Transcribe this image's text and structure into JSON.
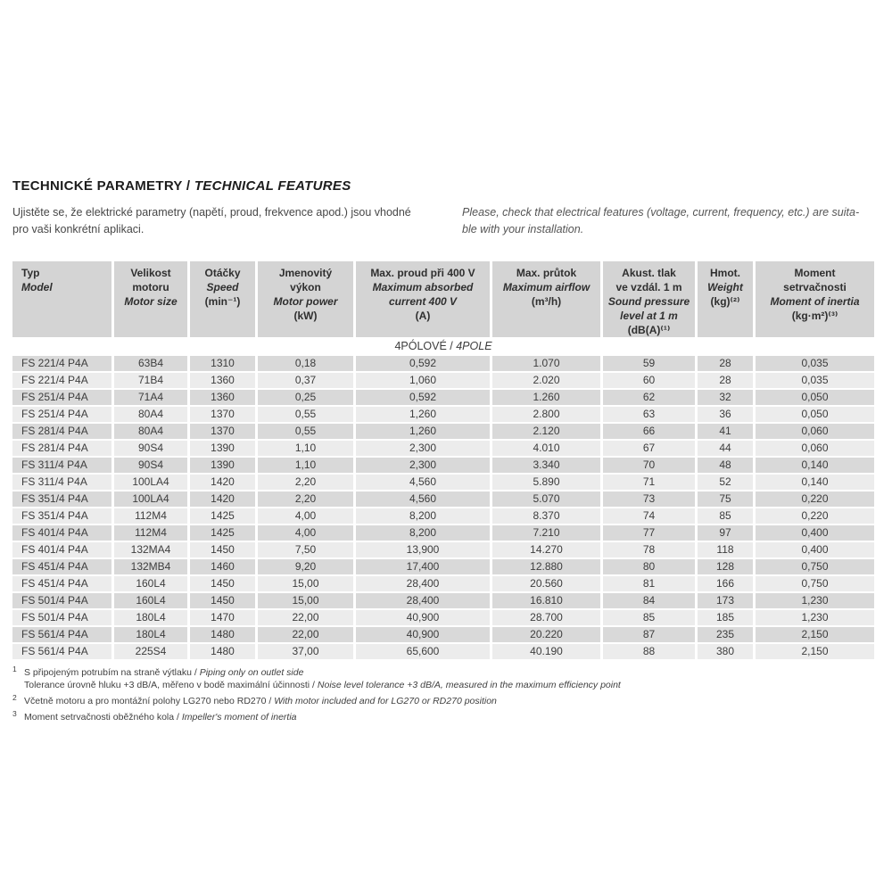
{
  "header": {
    "title_cs": "TECHNICKÉ PARAMETRY",
    "title_sep": " / ",
    "title_en": "TECHNICAL FEATURES"
  },
  "intro": {
    "cs": "Ujistěte se, že elektrické parametry (napětí, proud, frekvence apod.) jsou vhodné\npro vaši konkrétní aplikaci.",
    "en": "Please, check that electrical features (voltage, current, frequency, etc.) are suita-\nble with your installation."
  },
  "table": {
    "columns": [
      {
        "cs": "Typ",
        "en": "Model",
        "unit": ""
      },
      {
        "cs": "Velikost\nmotoru",
        "en": "Motor size",
        "unit": ""
      },
      {
        "cs": "Otáčky",
        "en": "Speed",
        "unit": "(min⁻¹)"
      },
      {
        "cs": "Jmenovitý\nvýkon",
        "en": "Motor power",
        "unit": "(kW)"
      },
      {
        "cs": "Max. proud při 400 V",
        "en": "Maximum absorbed\ncurrent 400 V",
        "unit": "(A)"
      },
      {
        "cs": "Max. průtok",
        "en": "Maximum airflow",
        "unit": "(m³/h)"
      },
      {
        "cs": "Akust. tlak\nve vzdál. 1 m",
        "en": "Sound pressure\nlevel at 1 m",
        "unit": "(dB(A)⁽¹⁾"
      },
      {
        "cs": "Hmot.",
        "en": "Weight",
        "unit": "(kg)⁽²⁾"
      },
      {
        "cs": "Moment\nsetrvačnosti",
        "en": "Moment of inertia",
        "unit": "(kg·m²)⁽³⁾"
      }
    ],
    "section_label_cs": "4PÓLOVÉ",
    "section_label_sep": " / ",
    "section_label_en": "4POLE",
    "rows": [
      [
        "FS 221/4 P4A",
        "63B4",
        "1310",
        "0,18",
        "0,592",
        "1.070",
        "59",
        "28",
        "0,035"
      ],
      [
        "FS 221/4 P4A",
        "71B4",
        "1360",
        "0,37",
        "1,060",
        "2.020",
        "60",
        "28",
        "0,035"
      ],
      [
        "FS 251/4 P4A",
        "71A4",
        "1360",
        "0,25",
        "0,592",
        "1.260",
        "62",
        "32",
        "0,050"
      ],
      [
        "FS 251/4 P4A",
        "80A4",
        "1370",
        "0,55",
        "1,260",
        "2.800",
        "63",
        "36",
        "0,050"
      ],
      [
        "FS 281/4 P4A",
        "80A4",
        "1370",
        "0,55",
        "1,260",
        "2.120",
        "66",
        "41",
        "0,060"
      ],
      [
        "FS 281/4 P4A",
        "90S4",
        "1390",
        "1,10",
        "2,300",
        "4.010",
        "67",
        "44",
        "0,060"
      ],
      [
        "FS 311/4 P4A",
        "90S4",
        "1390",
        "1,10",
        "2,300",
        "3.340",
        "70",
        "48",
        "0,140"
      ],
      [
        "FS 311/4 P4A",
        "100LA4",
        "1420",
        "2,20",
        "4,560",
        "5.890",
        "71",
        "52",
        "0,140"
      ],
      [
        "FS 351/4 P4A",
        "100LA4",
        "1420",
        "2,20",
        "4,560",
        "5.070",
        "73",
        "75",
        "0,220"
      ],
      [
        "FS 351/4 P4A",
        "112M4",
        "1425",
        "4,00",
        "8,200",
        "8.370",
        "74",
        "85",
        "0,220"
      ],
      [
        "FS 401/4 P4A",
        "112M4",
        "1425",
        "4,00",
        "8,200",
        "7.210",
        "77",
        "97",
        "0,400"
      ],
      [
        "FS 401/4 P4A",
        "132MA4",
        "1450",
        "7,50",
        "13,900",
        "14.270",
        "78",
        "118",
        "0,400"
      ],
      [
        "FS 451/4 P4A",
        "132MB4",
        "1460",
        "9,20",
        "17,400",
        "12.880",
        "80",
        "128",
        "0,750"
      ],
      [
        "FS 451/4 P4A",
        "160L4",
        "1450",
        "15,00",
        "28,400",
        "20.560",
        "81",
        "166",
        "0,750"
      ],
      [
        "FS 501/4 P4A",
        "160L4",
        "1450",
        "15,00",
        "28,400",
        "16.810",
        "84",
        "173",
        "1,230"
      ],
      [
        "FS 501/4 P4A",
        "180L4",
        "1470",
        "22,00",
        "40,900",
        "28.700",
        "85",
        "185",
        "1,230"
      ],
      [
        "FS 561/4 P4A",
        "180L4",
        "1480",
        "22,00",
        "40,900",
        "20.220",
        "87",
        "235",
        "2,150"
      ],
      [
        "FS 561/4 P4A",
        "225S4",
        "1480",
        "37,00",
        "65,600",
        "40.190",
        "88",
        "380",
        "2,150"
      ]
    ]
  },
  "footnotes": [
    {
      "marker": "1",
      "cs": "S připojeným potrubím na straně výtlaku / ",
      "en": "Piping only on outlet side"
    },
    {
      "marker": "",
      "cs": "Tolerance úrovně hluku +3 dB/A, měřeno v bodě maximální účinnosti / ",
      "en": "Noise level tolerance +3 dB/A, measured in the maximum efficiency point"
    },
    {
      "marker": "2",
      "cs": "Včetně motoru a pro montážní polohy LG270 nebo RD270 / ",
      "en": "With motor included and for LG270 or RD270 position"
    },
    {
      "marker": "3",
      "cs": "Moment setrvačnosti oběžného kola / ",
      "en": "Impeller's moment of inertia"
    }
  ],
  "colors": {
    "header_bg": "#d4d4d4",
    "row_dark_bg": "#d9d9d9",
    "row_light_bg": "#ececec",
    "text": "#3a3a3a"
  }
}
